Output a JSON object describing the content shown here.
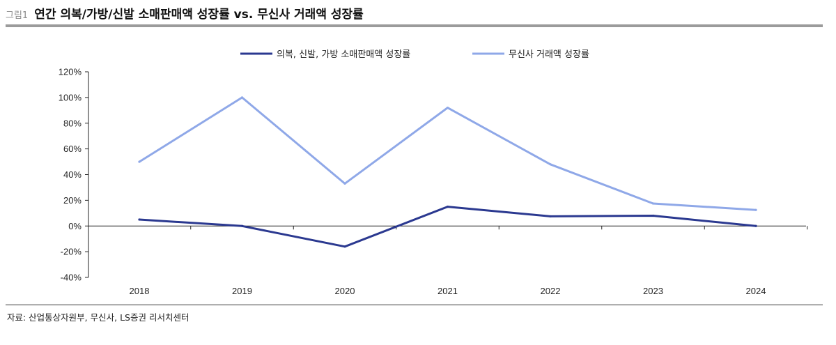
{
  "header": {
    "figure_label": "그림1",
    "title": "연간 의복/가방/신발 소매판매액 성장률 vs. 무신사 거래액 성장률"
  },
  "source": "자료: 산업통상자원부, 무신사, LS증권 리서치센터",
  "chart_data": {
    "type": "line",
    "title": "연간 의복/가방/신발 소매판매액 성장률 vs. 무신사 거래액 성장률",
    "xlabel": "",
    "ylabel": "",
    "categories": [
      "2018",
      "2019",
      "2020",
      "2021",
      "2022",
      "2023",
      "2024"
    ],
    "yticks": [
      "120%",
      "100%",
      "80%",
      "60%",
      "40%",
      "20%",
      "0%",
      "-20%",
      "-40%"
    ],
    "ylim": [
      -40,
      120
    ],
    "grid": false,
    "legend": "top-center",
    "series": [
      {
        "name": "의복, 신발, 가방 소매판매액 성장률",
        "color": "#2b3990",
        "values": [
          5,
          0,
          -16,
          15,
          7.5,
          8,
          0
        ]
      },
      {
        "name": "무신사 거래액 성장률",
        "color": "#8fa8e8",
        "values": [
          50,
          100,
          33,
          92,
          48,
          17.5,
          12.5
        ]
      }
    ]
  }
}
